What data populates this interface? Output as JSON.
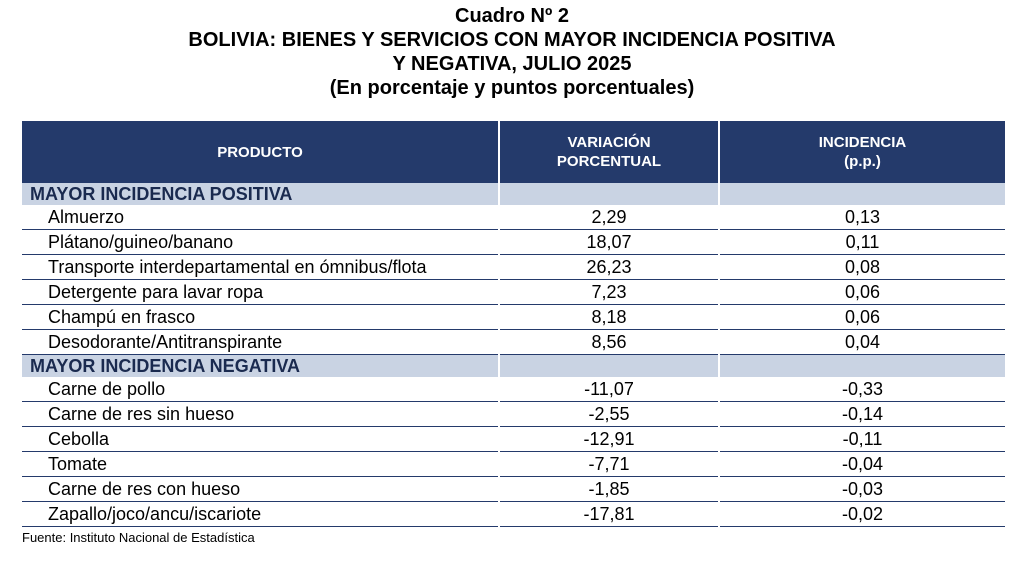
{
  "title": {
    "line1": "Cuadro Nº 2",
    "line2": "BOLIVIA: BIENES Y SERVICIOS CON MAYOR INCIDENCIA POSITIVA",
    "line3": "Y NEGATIVA, JULIO 2025",
    "line4": "(En porcentaje y puntos porcentuales)"
  },
  "table": {
    "headers": {
      "product": "PRODUCTO",
      "variation_line1": "VARIACIÓN",
      "variation_line2": "PORCENTUAL",
      "incidence_line1": "INCIDENCIA",
      "incidence_line2": "(p.p.)"
    },
    "positive": {
      "label": "MAYOR INCIDENCIA POSITIVA",
      "rows": [
        {
          "product": "Almuerzo",
          "variation": "2,29",
          "incidence": "0,13"
        },
        {
          "product": "Plátano/guineo/banano",
          "variation": "18,07",
          "incidence": "0,11"
        },
        {
          "product": "Transporte interdepartamental en ómnibus/flota",
          "variation": "26,23",
          "incidence": "0,08"
        },
        {
          "product": "Detergente para lavar ropa",
          "variation": "7,23",
          "incidence": "0,06"
        },
        {
          "product": "Champú en frasco",
          "variation": "8,18",
          "incidence": "0,06"
        },
        {
          "product": "Desodorante/Antitranspirante",
          "variation": "8,56",
          "incidence": "0,04"
        }
      ]
    },
    "negative": {
      "label": "MAYOR INCIDENCIA NEGATIVA",
      "rows": [
        {
          "product": "Carne de pollo",
          "variation": "-11,07",
          "incidence": "-0,33"
        },
        {
          "product": "Carne de res sin hueso",
          "variation": "-2,55",
          "incidence": "-0,14"
        },
        {
          "product": "Cebolla",
          "variation": "-12,91",
          "incidence": "-0,11"
        },
        {
          "product": "Tomate",
          "variation": "-7,71",
          "incidence": "-0,04"
        },
        {
          "product": "Carne de res con hueso",
          "variation": "-1,85",
          "incidence": "-0,03"
        },
        {
          "product": "Zapallo/joco/ancu/iscariote",
          "variation": "-17,81",
          "incidence": "-0,02"
        }
      ]
    }
  },
  "source": "Fuente: Instituto Nacional de Estadística",
  "colors": {
    "header_bg": "#243a6b",
    "section_bg": "#c9d3e3",
    "section_text": "#1a2a4f"
  }
}
